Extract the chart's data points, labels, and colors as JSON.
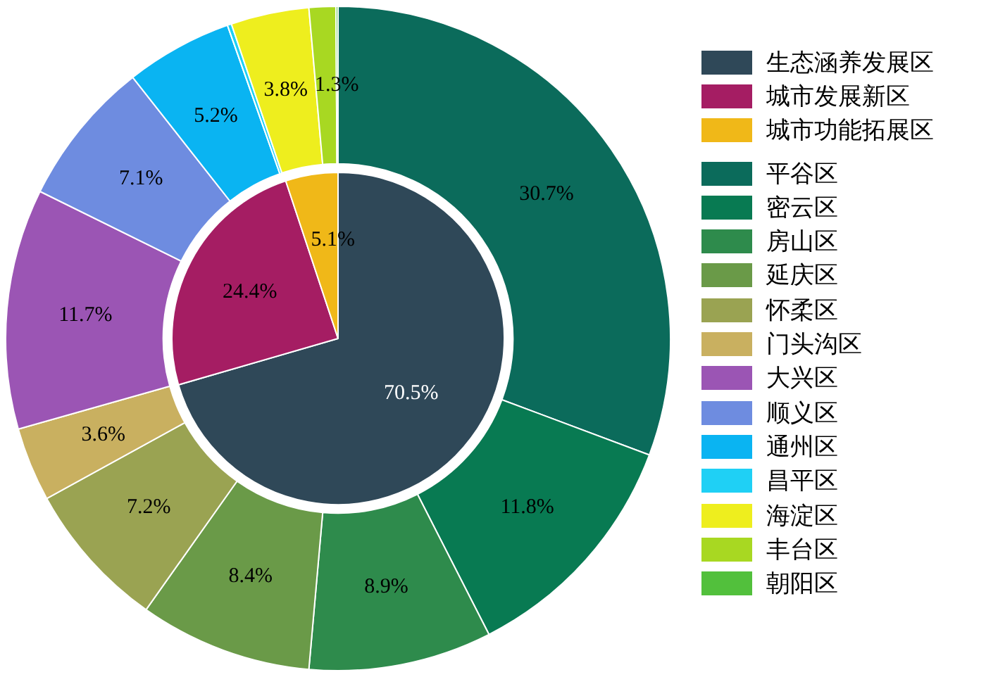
{
  "chart_data": [
    {
      "type": "pie",
      "categories": [
        "生态涵养发展区",
        "城市发展新区",
        "城市功能拓展区"
      ],
      "values": [
        70.5,
        24.4,
        5.1
      ],
      "colors": [
        "#2f4858",
        "#a51d63",
        "#f0b818"
      ],
      "value_labels": [
        "70.5%",
        "24.4%",
        "5.1%"
      ],
      "legend": "right"
    },
    {
      "type": "donut",
      "categories": [
        "平谷区",
        "密云区",
        "房山区",
        "延庆区",
        "怀柔区",
        "门头沟区",
        "大兴区",
        "顺义区",
        "通州区",
        "昌平区",
        "海淀区",
        "丰台区",
        "朝阳区"
      ],
      "values": [
        30.7,
        11.8,
        8.9,
        8.4,
        7.2,
        3.6,
        11.7,
        7.1,
        5.2,
        0.2,
        3.8,
        1.3,
        0.1
      ],
      "colors": [
        "#0b6b5b",
        "#087a52",
        "#2e8b4c",
        "#6a9a48",
        "#9aa352",
        "#c9b060",
        "#9b55b4",
        "#6e8ce0",
        "#0ab4f2",
        "#1fd0f5",
        "#eeee1e",
        "#a8d822",
        "#52c03c"
      ],
      "value_labels": [
        "30.7%",
        "11.8%",
        "8.9%",
        "8.4%",
        "7.2%",
        "3.6%",
        "11.7%",
        "7.1%",
        "5.2%",
        null,
        "3.8%",
        "1.3%",
        null
      ],
      "legend": "right"
    }
  ]
}
